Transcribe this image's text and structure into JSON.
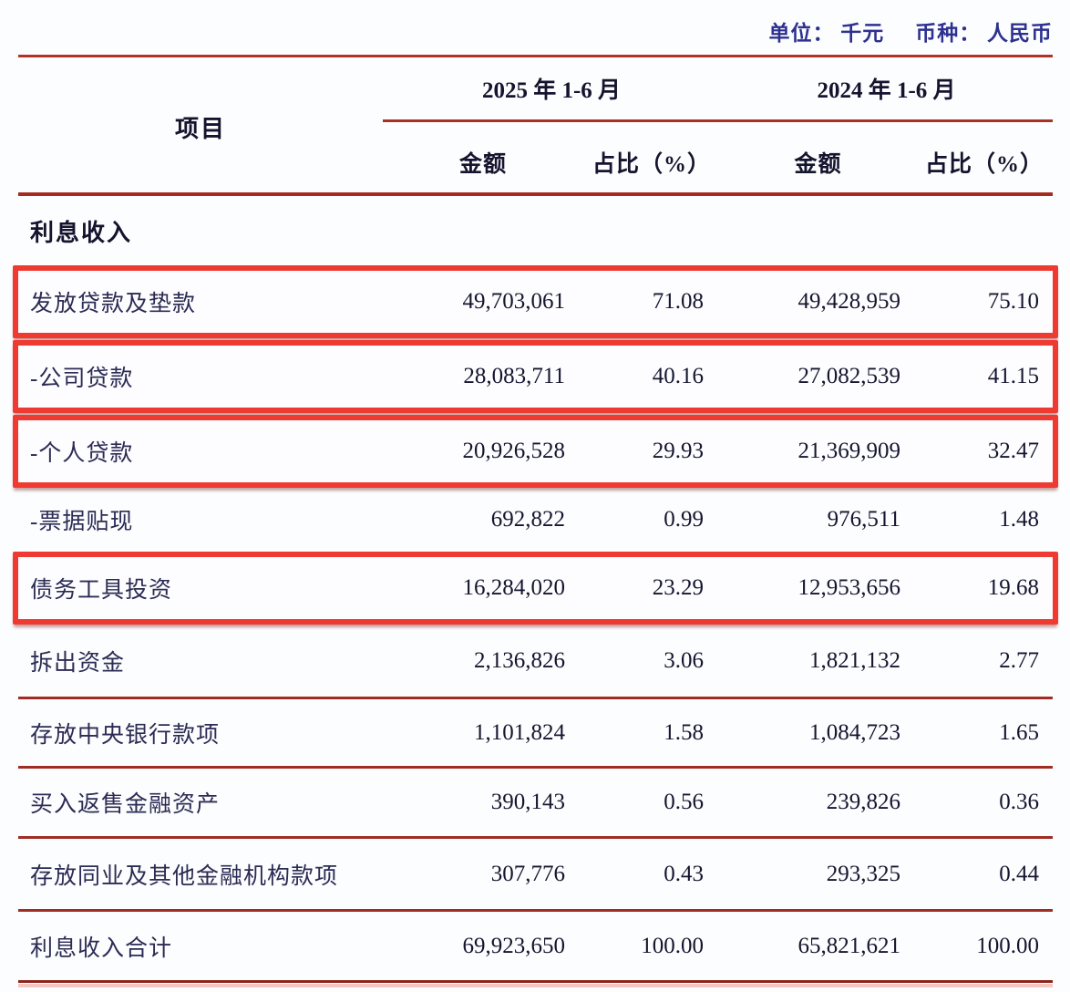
{
  "meta": {
    "unit_label": "单位： 千元",
    "currency_label": "币种： 人民币"
  },
  "table": {
    "item_header": "项目",
    "col_groups": [
      {
        "label": "2025 年 1-6 月"
      },
      {
        "label": "2024 年 1-6 月"
      }
    ],
    "sub_headers": {
      "amount": "金额",
      "pct": "占比（%）"
    },
    "section_header": "利息收入",
    "rows": [
      {
        "label": "发放贷款及垫款",
        "amount_2025": "49,703,061",
        "pct_2025": "71.08",
        "amount_2024": "49,428,959",
        "pct_2024": "75.10",
        "highlighted": true
      },
      {
        "label": "-公司贷款",
        "amount_2025": "28,083,711",
        "pct_2025": "40.16",
        "amount_2024": "27,082,539",
        "pct_2024": "41.15",
        "highlighted": true
      },
      {
        "label": "-个人贷款",
        "amount_2025": "20,926,528",
        "pct_2025": "29.93",
        "amount_2024": "21,369,909",
        "pct_2024": "32.47",
        "highlighted": true
      },
      {
        "label": "-票据贴现",
        "amount_2025": "692,822",
        "pct_2025": "0.99",
        "amount_2024": "976,511",
        "pct_2024": "1.48",
        "highlighted": false
      },
      {
        "label": "债务工具投资",
        "amount_2025": "16,284,020",
        "pct_2025": "23.29",
        "amount_2024": "12,953,656",
        "pct_2024": "19.68",
        "highlighted": true
      },
      {
        "label": "拆出资金",
        "amount_2025": "2,136,826",
        "pct_2025": "3.06",
        "amount_2024": "1,821,132",
        "pct_2024": "2.77",
        "highlighted": false
      },
      {
        "label": "存放中央银行款项",
        "amount_2025": "1,101,824",
        "pct_2025": "1.58",
        "amount_2024": "1,084,723",
        "pct_2024": "1.65",
        "highlighted": false
      },
      {
        "label": "买入返售金融资产",
        "amount_2025": "390,143",
        "pct_2025": "0.56",
        "amount_2024": "239,826",
        "pct_2024": "0.36",
        "highlighted": false
      },
      {
        "label": "存放同业及其他金融机构款项",
        "amount_2025": "307,776",
        "pct_2025": "0.43",
        "amount_2024": "293,325",
        "pct_2024": "0.44",
        "highlighted": false
      },
      {
        "label": "利息收入合计",
        "amount_2025": "69,923,650",
        "pct_2025": "100.00",
        "amount_2024": "65,821,621",
        "pct_2024": "100.00",
        "highlighted": false
      }
    ]
  },
  "colors": {
    "highlight_box_red": "#ee3a31",
    "rule_dark_red": "#a52a20",
    "unit_text_navy": "#2e3190",
    "body_text_navy": "#2b2b54"
  }
}
